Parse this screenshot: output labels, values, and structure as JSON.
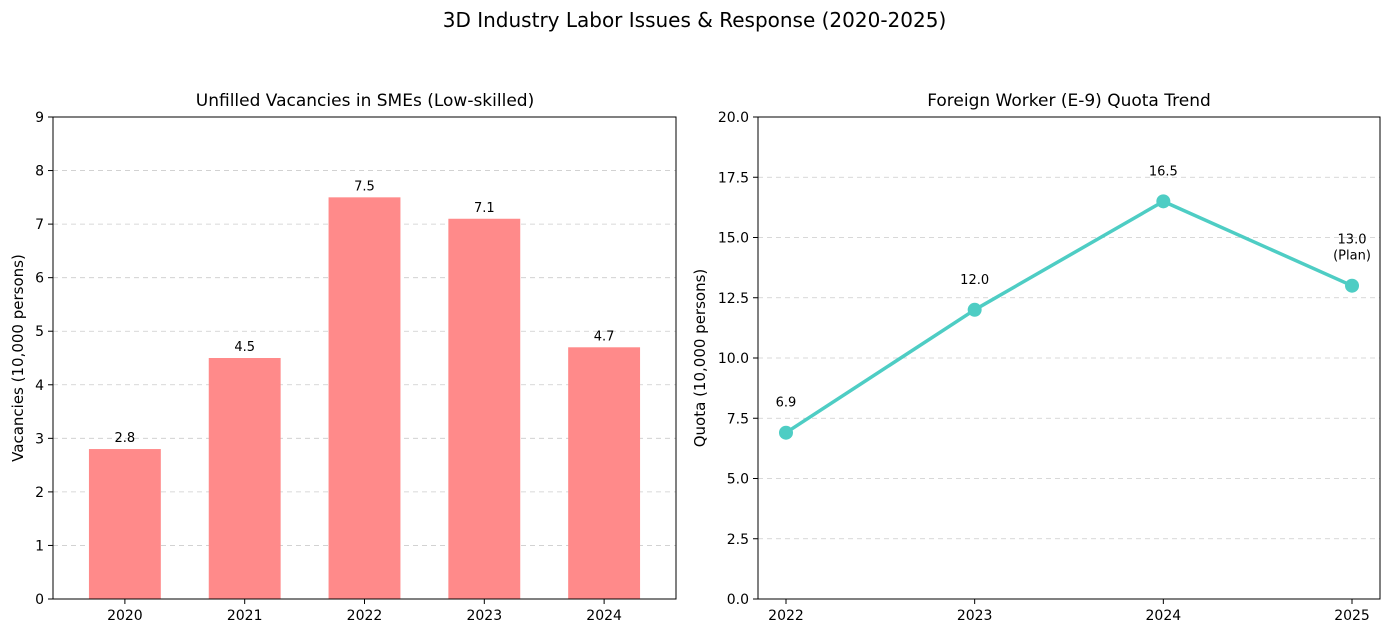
{
  "figure": {
    "title": "3D Industry Labor Issues & Response (2020-2025)"
  },
  "chart_data": [
    {
      "type": "bar",
      "title": "Unfilled Vacancies in SMEs (Low-skilled)",
      "xlabel": "",
      "ylabel": "Vacancies (10,000 persons)",
      "categories": [
        "2020",
        "2021",
        "2022",
        "2023",
        "2024"
      ],
      "values": [
        2.8,
        4.5,
        7.5,
        7.1,
        4.7
      ],
      "data_labels": [
        "2.8",
        "4.5",
        "7.5",
        "7.1",
        "4.7"
      ],
      "ylim": [
        0,
        9
      ],
      "yticks": [
        "0",
        "1",
        "2",
        "3",
        "4",
        "5",
        "6",
        "7",
        "8",
        "9"
      ],
      "grid": "y-dashed",
      "color": "#ff8a8a"
    },
    {
      "type": "line",
      "title": "Foreign Worker (E-9) Quota Trend",
      "xlabel": "",
      "ylabel": "Quota (10,000 persons)",
      "categories": [
        "2022",
        "2023",
        "2024",
        "2025"
      ],
      "values": [
        6.9,
        12.0,
        16.5,
        13.0
      ],
      "data_labels": [
        [
          "6.9"
        ],
        [
          "12.0"
        ],
        [
          "16.5"
        ],
        [
          "13.0",
          "(Plan)"
        ]
      ],
      "ylim": [
        0,
        20
      ],
      "yticks": [
        "0.0",
        "2.5",
        "5.0",
        "7.5",
        "10.0",
        "12.5",
        "15.0",
        "17.5",
        "20.0"
      ],
      "grid": "y-dashed",
      "color": "#4ecdc4"
    }
  ]
}
